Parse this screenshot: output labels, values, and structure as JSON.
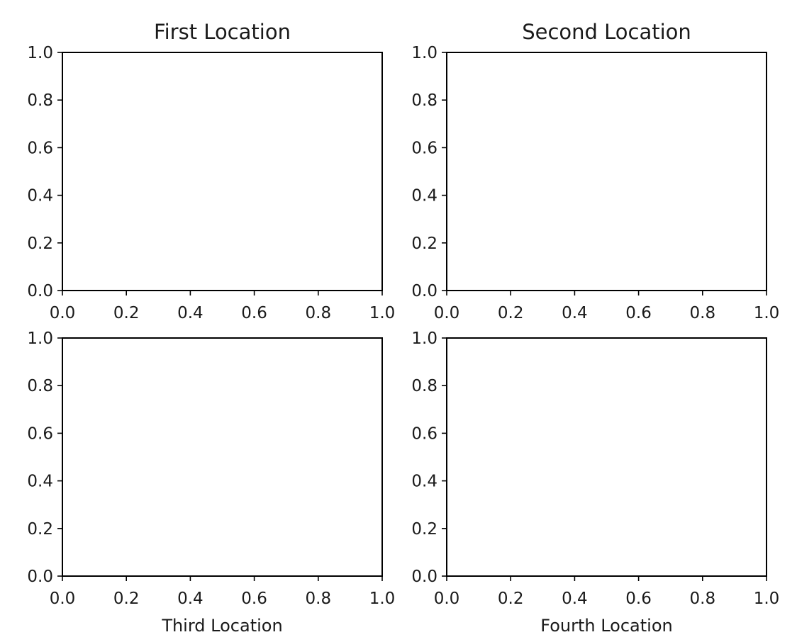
{
  "chart_data": [
    {
      "type": "scatter",
      "title": "First Location",
      "xlabel": "",
      "ylabel": "",
      "xlim": [
        0.0,
        1.0
      ],
      "ylim": [
        0.0,
        1.0
      ],
      "xticks": [
        "0.0",
        "0.2",
        "0.4",
        "0.6",
        "0.8",
        "1.0"
      ],
      "yticks": [
        "0.0",
        "0.2",
        "0.4",
        "0.6",
        "0.8",
        "1.0"
      ],
      "series": [],
      "grid": false
    },
    {
      "type": "scatter",
      "title": "Second Location",
      "xlabel": "",
      "ylabel": "",
      "xlim": [
        0.0,
        1.0
      ],
      "ylim": [
        0.0,
        1.0
      ],
      "xticks": [
        "0.0",
        "0.2",
        "0.4",
        "0.6",
        "0.8",
        "1.0"
      ],
      "yticks": [
        "0.0",
        "0.2",
        "0.4",
        "0.6",
        "0.8",
        "1.0"
      ],
      "series": [],
      "grid": false
    },
    {
      "type": "scatter",
      "title": "",
      "xlabel": "Third Location",
      "ylabel": "",
      "xlim": [
        0.0,
        1.0
      ],
      "ylim": [
        0.0,
        1.0
      ],
      "xticks": [
        "0.0",
        "0.2",
        "0.4",
        "0.6",
        "0.8",
        "1.0"
      ],
      "yticks": [
        "0.0",
        "0.2",
        "0.4",
        "0.6",
        "0.8",
        "1.0"
      ],
      "series": [],
      "grid": false
    },
    {
      "type": "scatter",
      "title": "",
      "xlabel": "Fourth Location",
      "ylabel": "",
      "xlim": [
        0.0,
        1.0
      ],
      "ylim": [
        0.0,
        1.0
      ],
      "xticks": [
        "0.0",
        "0.2",
        "0.4",
        "0.6",
        "0.8",
        "1.0"
      ],
      "yticks": [
        "0.0",
        "0.2",
        "0.4",
        "0.6",
        "0.8",
        "1.0"
      ],
      "series": [],
      "grid": false
    }
  ]
}
